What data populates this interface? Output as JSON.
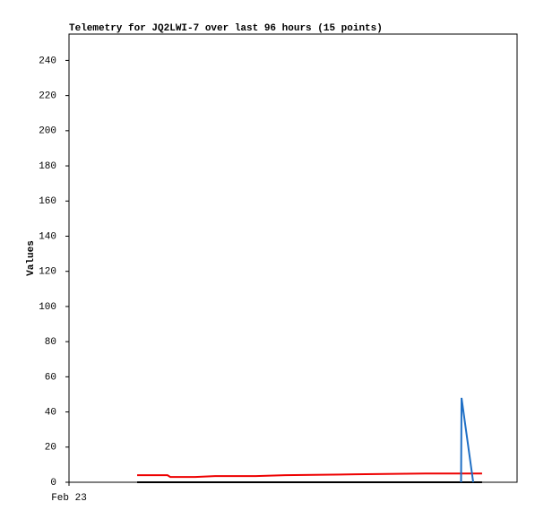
{
  "chart_data": {
    "type": "line",
    "title": "Telemetry for JQ2LWI-7 over last 96 hours (15 points)",
    "ylabel": "Values",
    "x": [
      14.6,
      17,
      21.1,
      21.7,
      27,
      31.3,
      40,
      46.3,
      61.4,
      76.4,
      80,
      84.0,
      84.1,
      86.6,
      88.5
    ],
    "xlim": [
      0,
      96
    ],
    "xticks": [
      {
        "value": 0,
        "label": "Feb 23"
      }
    ],
    "ylim": [
      0,
      255
    ],
    "yticks": [
      0,
      20,
      40,
      60,
      80,
      100,
      120,
      140,
      160,
      180,
      200,
      220,
      240
    ],
    "series": [
      {
        "color": "#000000",
        "values": [
          0,
          0,
          0,
          0,
          0,
          0,
          0,
          0,
          0,
          0,
          0,
          0,
          0,
          0,
          0
        ]
      },
      {
        "color": "#ee0000",
        "values": [
          4,
          4,
          4,
          3,
          3,
          3.5,
          3.5,
          4,
          4.5,
          5,
          5,
          5,
          5,
          5,
          5
        ]
      },
      {
        "color": "#1f6fc5",
        "values": [
          null,
          null,
          null,
          null,
          null,
          null,
          null,
          null,
          null,
          null,
          null,
          0,
          48,
          0,
          null
        ]
      }
    ]
  }
}
